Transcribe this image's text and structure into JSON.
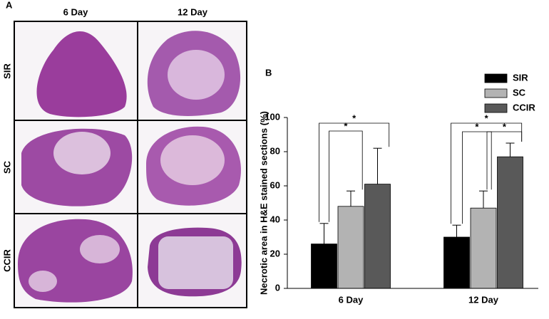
{
  "panel_a": {
    "label": "A",
    "columns": [
      "6 Day",
      "12 Day"
    ],
    "rows": [
      "SIR",
      "SC",
      "CCIR"
    ]
  },
  "chart_data": {
    "type": "bar",
    "panel_label": "B",
    "ylabel": "Necrotic area in H&E stained sections (%)",
    "categories": [
      "6 Day",
      "12 Day"
    ],
    "series": [
      {
        "name": "SIR",
        "color": "#000000",
        "values": [
          26,
          30
        ],
        "errors": [
          12,
          7
        ]
      },
      {
        "name": "SC",
        "color": "#b3b3b3",
        "values": [
          48,
          47
        ],
        "errors": [
          9,
          10
        ]
      },
      {
        "name": "CCIR",
        "color": "#595959",
        "values": [
          61,
          77
        ],
        "errors": [
          21,
          8
        ]
      }
    ],
    "ylim": [
      0,
      100
    ],
    "yticks": [
      0,
      20,
      40,
      60,
      80,
      100
    ],
    "annotations": [
      "*",
      "*",
      "*",
      "*",
      "*"
    ]
  }
}
